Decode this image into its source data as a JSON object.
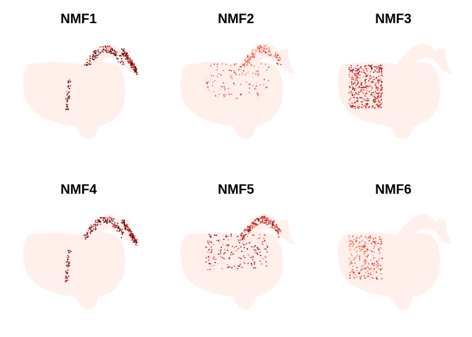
{
  "figure": {
    "background": "#ffffff"
  },
  "chart_data": {
    "type": "scatter",
    "style": "UMAP-like embedding feature plots (no axes)",
    "background_fill": "#fff0ec",
    "colormap": [
      "#fff0ec",
      "#fcbba1",
      "#fb6a4a",
      "#cb181d",
      "#67000d",
      "#2b0007"
    ],
    "layout": {
      "rows": 2,
      "cols": 3
    },
    "axes": {
      "shown": false,
      "grid": false,
      "legend": "none"
    },
    "panels": [
      {
        "title": "NMF1",
        "hotspots": [
          "arm",
          "arm-tip",
          "body-crack"
        ],
        "intensity": "high"
      },
      {
        "title": "NMF2",
        "hotspots": [
          "upper-center",
          "arm"
        ],
        "intensity": "low"
      },
      {
        "title": "NMF3",
        "hotspots": [
          "left-block"
        ],
        "intensity": "medium"
      },
      {
        "title": "NMF4",
        "hotspots": [
          "arm",
          "arm-tip",
          "body-crack"
        ],
        "intensity": "high"
      },
      {
        "title": "NMF5",
        "hotspots": [
          "upper-center",
          "arm"
        ],
        "intensity": "medium"
      },
      {
        "title": "NMF6",
        "hotspots": [
          "left-block"
        ],
        "intensity": "low"
      }
    ]
  }
}
